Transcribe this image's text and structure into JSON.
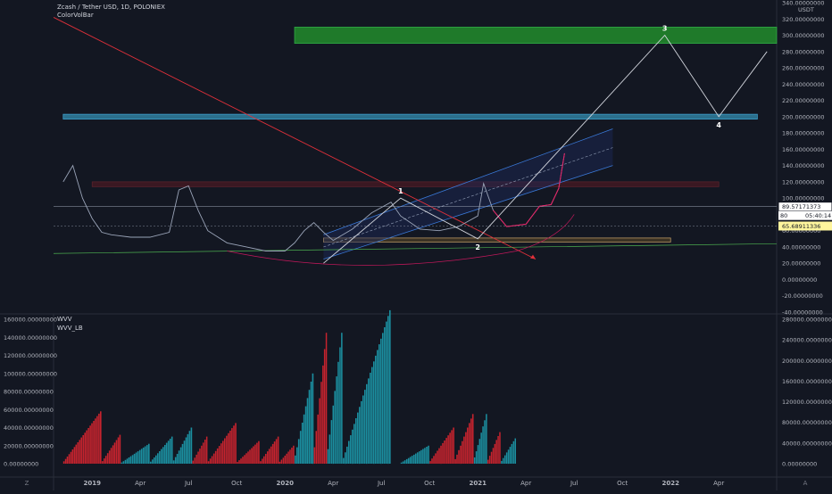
{
  "header": {
    "title": "Zcash / Tether USD, 1D, POLONIEX",
    "indicator": "ColorVolBar"
  },
  "volume_panel": {
    "labels": [
      "WVV",
      "WVV_LB"
    ]
  },
  "price_panel": {
    "unit": "USDT",
    "current_price": "89.57171373",
    "countdown": "05:40:14",
    "partial_label_80": "80",
    "level_label": "65.68911336",
    "wave_labels": [
      "1",
      "2",
      "3",
      "4"
    ]
  },
  "corner": {
    "left": "Z",
    "right": "A"
  },
  "colors": {
    "background": "#131722",
    "red_line": "#e0303a",
    "channel": "#3a79d8",
    "green_zone": "#1f7a2a",
    "blue_zone": "#2b6f8c",
    "wave": "#d1d4dc",
    "vol_red": "#c6232e",
    "vol_teal": "#1b8fa0",
    "highlight": "#fff59d"
  },
  "chart_data": [
    {
      "type": "line",
      "title": "Zcash / Tether USD, 1D, POLONIEX",
      "ylabel": "USDT",
      "ylim": [
        -40,
        340
      ],
      "x_tick_labels": [
        "2019",
        "Apr",
        "Jul",
        "Oct",
        "2020",
        "Apr",
        "Jul",
        "Oct",
        "2021",
        "Apr",
        "Jul",
        "Oct",
        "2022",
        "Apr"
      ],
      "y_ticks": [
        340,
        320,
        300,
        280,
        260,
        240,
        220,
        200,
        180,
        160,
        140,
        120,
        100,
        60,
        40,
        20,
        0,
        -20,
        -40
      ],
      "y_tick_labels": [
        "340.00000000",
        "320.00000000",
        "300.00000000",
        "280.00000000",
        "260.00000000",
        "240.00000000",
        "220.00000000",
        "200.00000000",
        "180.00000000",
        "160.00000000",
        "140.00000000",
        "120.00000000",
        "100.00000000",
        "60.00000000",
        "40.00000000",
        "20.00000000",
        "0.00000000",
        "-20.00000000",
        "-40.00000000"
      ],
      "series": [
        {
          "x": [
            2018.85,
            2018.9,
            2018.95,
            2019.0,
            2019.05,
            2019.1,
            2019.2,
            2019.3,
            2019.4,
            2019.45,
            2019.5,
            2019.55,
            2019.6,
            2019.7,
            2019.8,
            2019.9,
            2020.0,
            2020.05,
            2020.1,
            2020.15,
            2020.2,
            2020.25,
            2020.35,
            2020.45,
            2020.55,
            2020.6,
            2020.7,
            2020.8,
            2020.9,
            2021.0,
            2021.03,
            2021.08,
            2021.15,
            2021.25,
            2021.32,
            2021.38,
            2021.42,
            2021.45
          ],
          "y": [
            120,
            140,
            100,
            75,
            58,
            55,
            52,
            52,
            58,
            110,
            115,
            85,
            60,
            45,
            40,
            35,
            35,
            45,
            60,
            70,
            58,
            48,
            62,
            82,
            95,
            78,
            62,
            60,
            65,
            78,
            118,
            85,
            65,
            68,
            90,
            92,
            112,
            155
          ]
        }
      ],
      "annotations": [
        {
          "label": "1",
          "x": 2020.6,
          "y": 100
        },
        {
          "label": "2",
          "x": 2021.0,
          "y": 50
        },
        {
          "label": "3",
          "x": 2021.97,
          "y": 300
        },
        {
          "label": "4",
          "x": 2022.25,
          "y": 200
        }
      ],
      "wave_path": {
        "x": [
          2020.2,
          2020.6,
          2021.0,
          2021.97,
          2022.25,
          2022.5
        ],
        "y": [
          20,
          100,
          50,
          300,
          200,
          280
        ]
      },
      "zones": [
        {
          "name": "green",
          "x": [
            2020.05,
            2022.55
          ],
          "y": [
            290,
            310
          ]
        },
        {
          "name": "blue",
          "x": [
            2018.85,
            2022.45
          ],
          "y": [
            197,
            203
          ]
        },
        {
          "name": "red",
          "x": [
            2019.0,
            2022.25
          ],
          "y": [
            114,
            120
          ]
        },
        {
          "name": "orange",
          "x": [
            2020.2,
            2022.0
          ],
          "y": [
            46,
            51
          ]
        }
      ],
      "current_price": 89.57171373,
      "level": 65.68911336
    },
    {
      "type": "bar",
      "series_labels": [
        "WVV",
        "WVV_LB"
      ],
      "ylim_left": [
        0,
        160000
      ],
      "ylim_right": [
        0,
        280000
      ],
      "y_ticks_left": [
        160000,
        140000,
        120000,
        100000,
        80000,
        60000,
        40000,
        20000,
        0
      ],
      "y_tick_labels_left": [
        "160000.00000000",
        "140000.00000000",
        "120000.00000000",
        "100000.00000000",
        "80000.00000000",
        "60000.00000000",
        "40000.00000000",
        "20000.00000000",
        "0.00000000"
      ],
      "y_ticks_right": [
        280000,
        240000,
        200000,
        160000,
        120000,
        80000,
        40000,
        0
      ],
      "y_tick_labels_right": [
        "280000.00000000",
        "240000.00000000",
        "200000.00000000",
        "160000.00000000",
        "120000.00000000",
        "80000.00000000",
        "40000.00000000",
        "0.00000000"
      ],
      "segments": [
        {
          "x_start": 2018.85,
          "x_end": 2019.05,
          "peak": 58000,
          "color": "red"
        },
        {
          "x_start": 2019.05,
          "x_end": 2019.15,
          "peak": 32000,
          "color": "red"
        },
        {
          "x_start": 2019.15,
          "x_end": 2019.3,
          "peak": 22000,
          "color": "teal"
        },
        {
          "x_start": 2019.3,
          "x_end": 2019.42,
          "peak": 30000,
          "color": "teal"
        },
        {
          "x_start": 2019.42,
          "x_end": 2019.52,
          "peak": 40000,
          "color": "teal"
        },
        {
          "x_start": 2019.52,
          "x_end": 2019.6,
          "peak": 30000,
          "color": "red"
        },
        {
          "x_start": 2019.6,
          "x_end": 2019.75,
          "peak": 45000,
          "color": "red"
        },
        {
          "x_start": 2019.75,
          "x_end": 2019.87,
          "peak": 25000,
          "color": "red"
        },
        {
          "x_start": 2019.87,
          "x_end": 2019.97,
          "peak": 30000,
          "color": "red"
        },
        {
          "x_start": 2019.97,
          "x_end": 2020.05,
          "peak": 20000,
          "color": "red"
        },
        {
          "x_start": 2020.05,
          "x_end": 2020.15,
          "peak": 100000,
          "color": "teal"
        },
        {
          "x_start": 2020.15,
          "x_end": 2020.22,
          "peak": 145000,
          "color": "red"
        },
        {
          "x_start": 2020.22,
          "x_end": 2020.3,
          "peak": 145000,
          "color": "teal"
        },
        {
          "x_start": 2020.3,
          "x_end": 2020.55,
          "peak": 170000,
          "color": "teal"
        },
        {
          "x_start": 2020.6,
          "x_end": 2020.75,
          "peak": 20000,
          "color": "teal"
        },
        {
          "x_start": 2020.75,
          "x_end": 2020.88,
          "peak": 40000,
          "color": "red"
        },
        {
          "x_start": 2020.88,
          "x_end": 2020.98,
          "peak": 55000,
          "color": "red"
        },
        {
          "x_start": 2020.98,
          "x_end": 2021.05,
          "peak": 55000,
          "color": "teal"
        },
        {
          "x_start": 2021.05,
          "x_end": 2021.12,
          "peak": 35000,
          "color": "red"
        },
        {
          "x_start": 2021.12,
          "x_end": 2021.2,
          "peak": 28000,
          "color": "teal"
        }
      ]
    }
  ]
}
